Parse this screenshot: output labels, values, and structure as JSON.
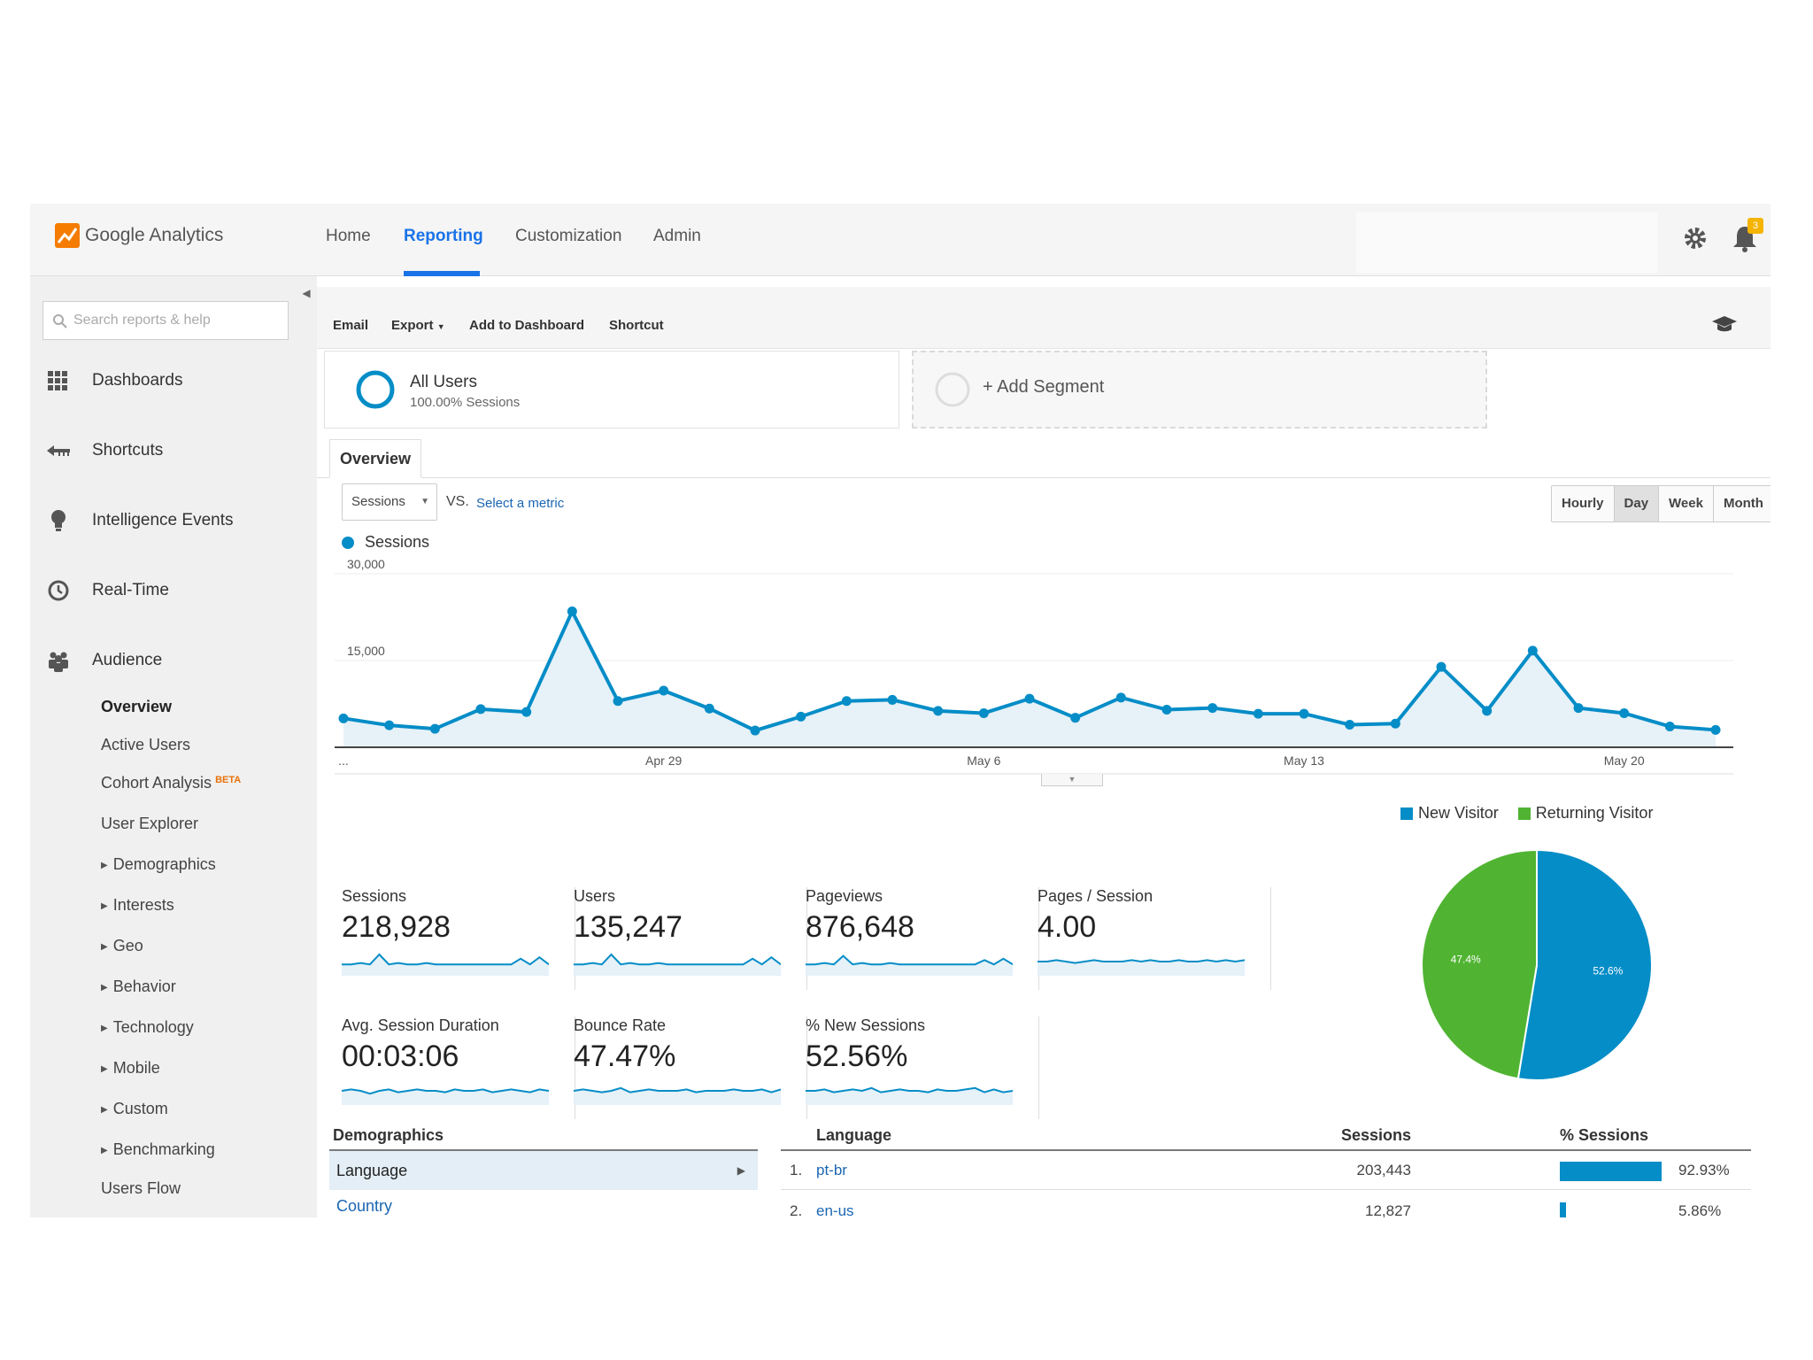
{
  "app": {
    "logo_text": "Google Analytics"
  },
  "nav": {
    "home": "Home",
    "reporting": "Reporting",
    "customization": "Customization",
    "admin": "Admin"
  },
  "notifications": {
    "count": "3"
  },
  "sidebar": {
    "search_placeholder": "Search reports & help",
    "main_items": {
      "dashboards": "Dashboards",
      "shortcuts": "Shortcuts",
      "intelligence": "Intelligence Events",
      "realtime": "Real-Time",
      "audience": "Audience"
    },
    "audience_items": {
      "overview": "Overview",
      "active_users": "Active Users",
      "cohort": "Cohort Analysis",
      "cohort_badge": "BETA",
      "user_explorer": "User Explorer",
      "demographics": "Demographics",
      "interests": "Interests",
      "geo": "Geo",
      "behavior": "Behavior",
      "technology": "Technology",
      "mobile": "Mobile",
      "custom": "Custom",
      "benchmarking": "Benchmarking",
      "users_flow": "Users Flow"
    }
  },
  "toolbar": {
    "email": "Email",
    "export": "Export",
    "add_dashboard": "Add to Dashboard",
    "shortcut": "Shortcut"
  },
  "segments": {
    "all_users": "All Users",
    "all_users_pct": "100.00% Sessions",
    "add": "+ Add Segment"
  },
  "tabs": {
    "overview": "Overview"
  },
  "controls": {
    "metric": "Sessions",
    "vs": "VS.",
    "select_metric": "Select a metric",
    "hourly": "Hourly",
    "day": "Day",
    "week": "Week",
    "month": "Month",
    "active_granularity": "Day"
  },
  "chart_data": {
    "type": "area",
    "series": [
      {
        "name": "Sessions",
        "values": [
          5000,
          3800,
          3200,
          6600,
          6100,
          23500,
          8000,
          9800,
          6700,
          2900,
          5300,
          8000,
          8200,
          6300,
          5900,
          8400,
          5100,
          8600,
          6500,
          6800,
          5800,
          5800,
          3900,
          4100,
          13900,
          6300,
          16700,
          6800,
          5900,
          3600,
          3000
        ]
      }
    ],
    "x_tick_labels": [
      "...",
      "Apr 29",
      "May 6",
      "May 13",
      "May 20"
    ],
    "x_tick_index": [
      0,
      7,
      14,
      21,
      28
    ],
    "y_tick_labels": [
      "30,000",
      "15,000"
    ],
    "ylim": [
      0,
      30000
    ],
    "color": "#058dc7",
    "fill": "#e6f1f8",
    "grid": true
  },
  "stats": [
    {
      "label": "Sessions",
      "value": "218,928"
    },
    {
      "label": "Users",
      "value": "135,247"
    },
    {
      "label": "Pageviews",
      "value": "876,648"
    },
    {
      "label": "Pages / Session",
      "value": "4.00"
    },
    {
      "label": "Avg. Session Duration",
      "value": "00:03:06"
    },
    {
      "label": "Bounce Rate",
      "value": "47.47%"
    },
    {
      "label": "% New Sessions",
      "value": "52.56%"
    }
  ],
  "visitor_pie": {
    "type": "pie",
    "slices": [
      {
        "name": "New Visitor",
        "value": 52.6,
        "label": "52.6%",
        "color": "#058dc7"
      },
      {
        "name": "Returning Visitor",
        "value": 47.4,
        "label": "47.4%",
        "color": "#50b432"
      }
    ]
  },
  "demographics": {
    "heading": "Demographics",
    "language": "Language",
    "country": "Country"
  },
  "language_table": {
    "headers": {
      "language": "Language",
      "sessions": "Sessions",
      "pct_sessions": "% Sessions"
    },
    "rows": [
      {
        "num": "1.",
        "name": "pt-br",
        "sessions": "203,443",
        "pct": "92.93%",
        "share": 0.9293
      },
      {
        "num": "2.",
        "name": "en-us",
        "sessions": "12,827",
        "pct": "5.86%",
        "share": 0.0586
      }
    ]
  }
}
